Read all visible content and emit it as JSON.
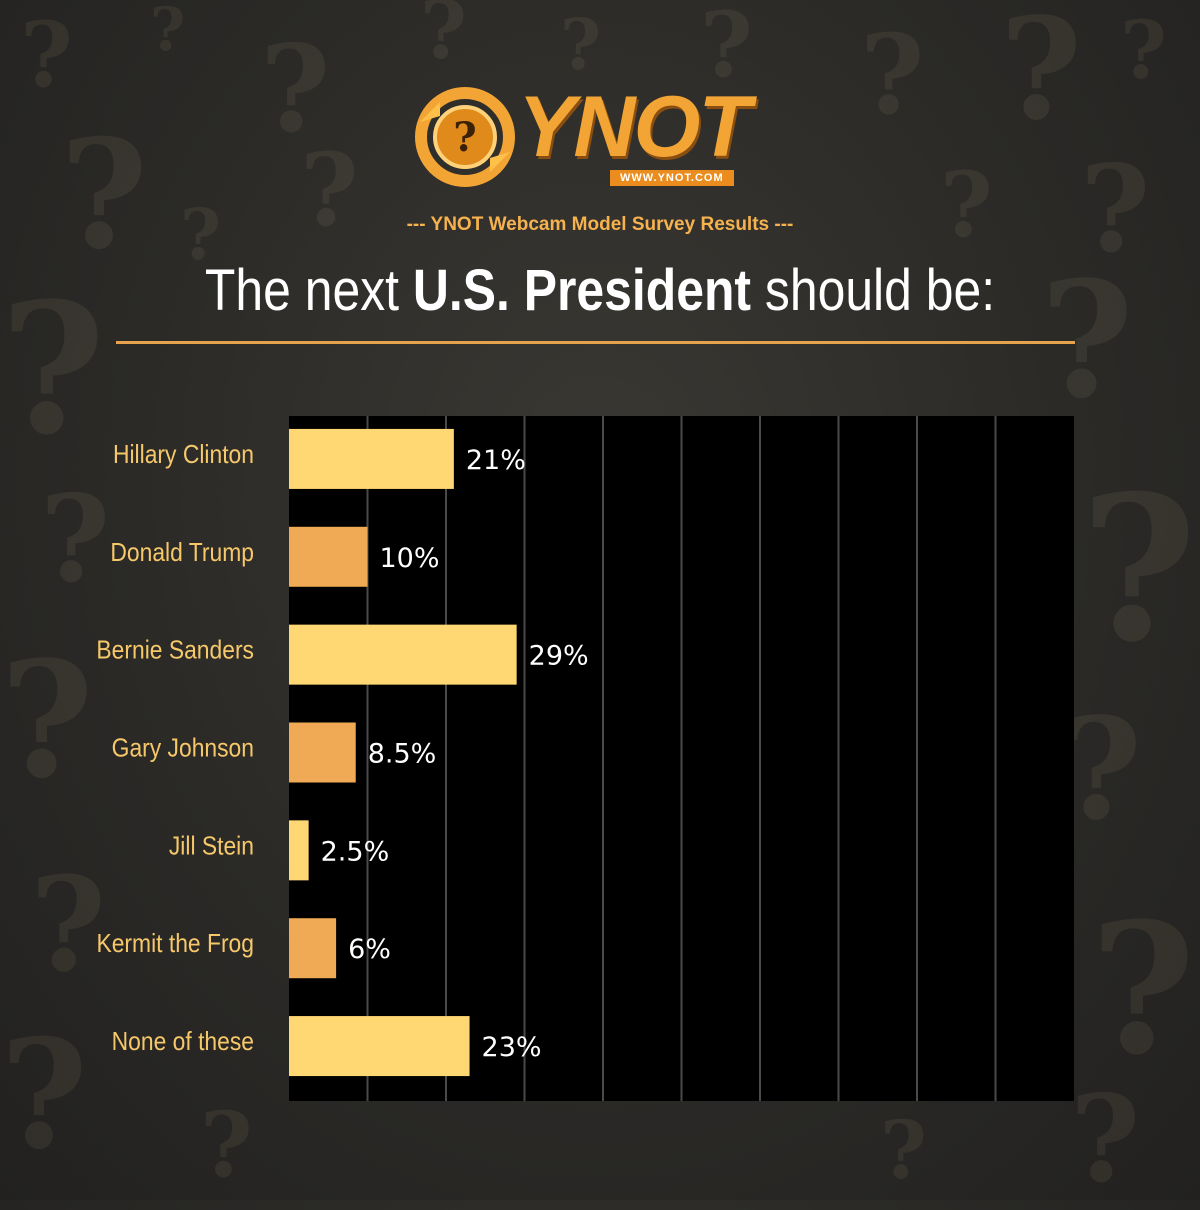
{
  "header": {
    "logo_text": "YNOT",
    "logo_url": "WWW.YNOT.COM",
    "subtitle": "--- YNOT Webcam Model Survey Results  ---",
    "headline_pre": "The next ",
    "headline_bold": "U.S. President",
    "headline_post": " should be:"
  },
  "colors": {
    "bar_light": "#ffd873",
    "bar_dark": "#f0aa55",
    "plot_bg": "#000000",
    "grid": "#4a4a4a",
    "label": "#f6c86a",
    "accent": "#e7a24d"
  },
  "chart_data": {
    "type": "bar",
    "orientation": "horizontal",
    "title": "The next U.S. President should be:",
    "categories": [
      "Hillary Clinton",
      "Donald Trump",
      "Bernie Sanders",
      "Gary Johnson",
      "Jill Stein",
      "Kermit the Frog",
      "None of these"
    ],
    "values": [
      21,
      10,
      29,
      8.5,
      2.5,
      6,
      23
    ],
    "value_labels": [
      "21%",
      "10%",
      "29%",
      "8.5%",
      "2.5%",
      "6%",
      "23%"
    ],
    "unit": "%",
    "xlim": [
      0,
      100
    ],
    "grid": true,
    "xlabel": "",
    "ylabel": ""
  }
}
